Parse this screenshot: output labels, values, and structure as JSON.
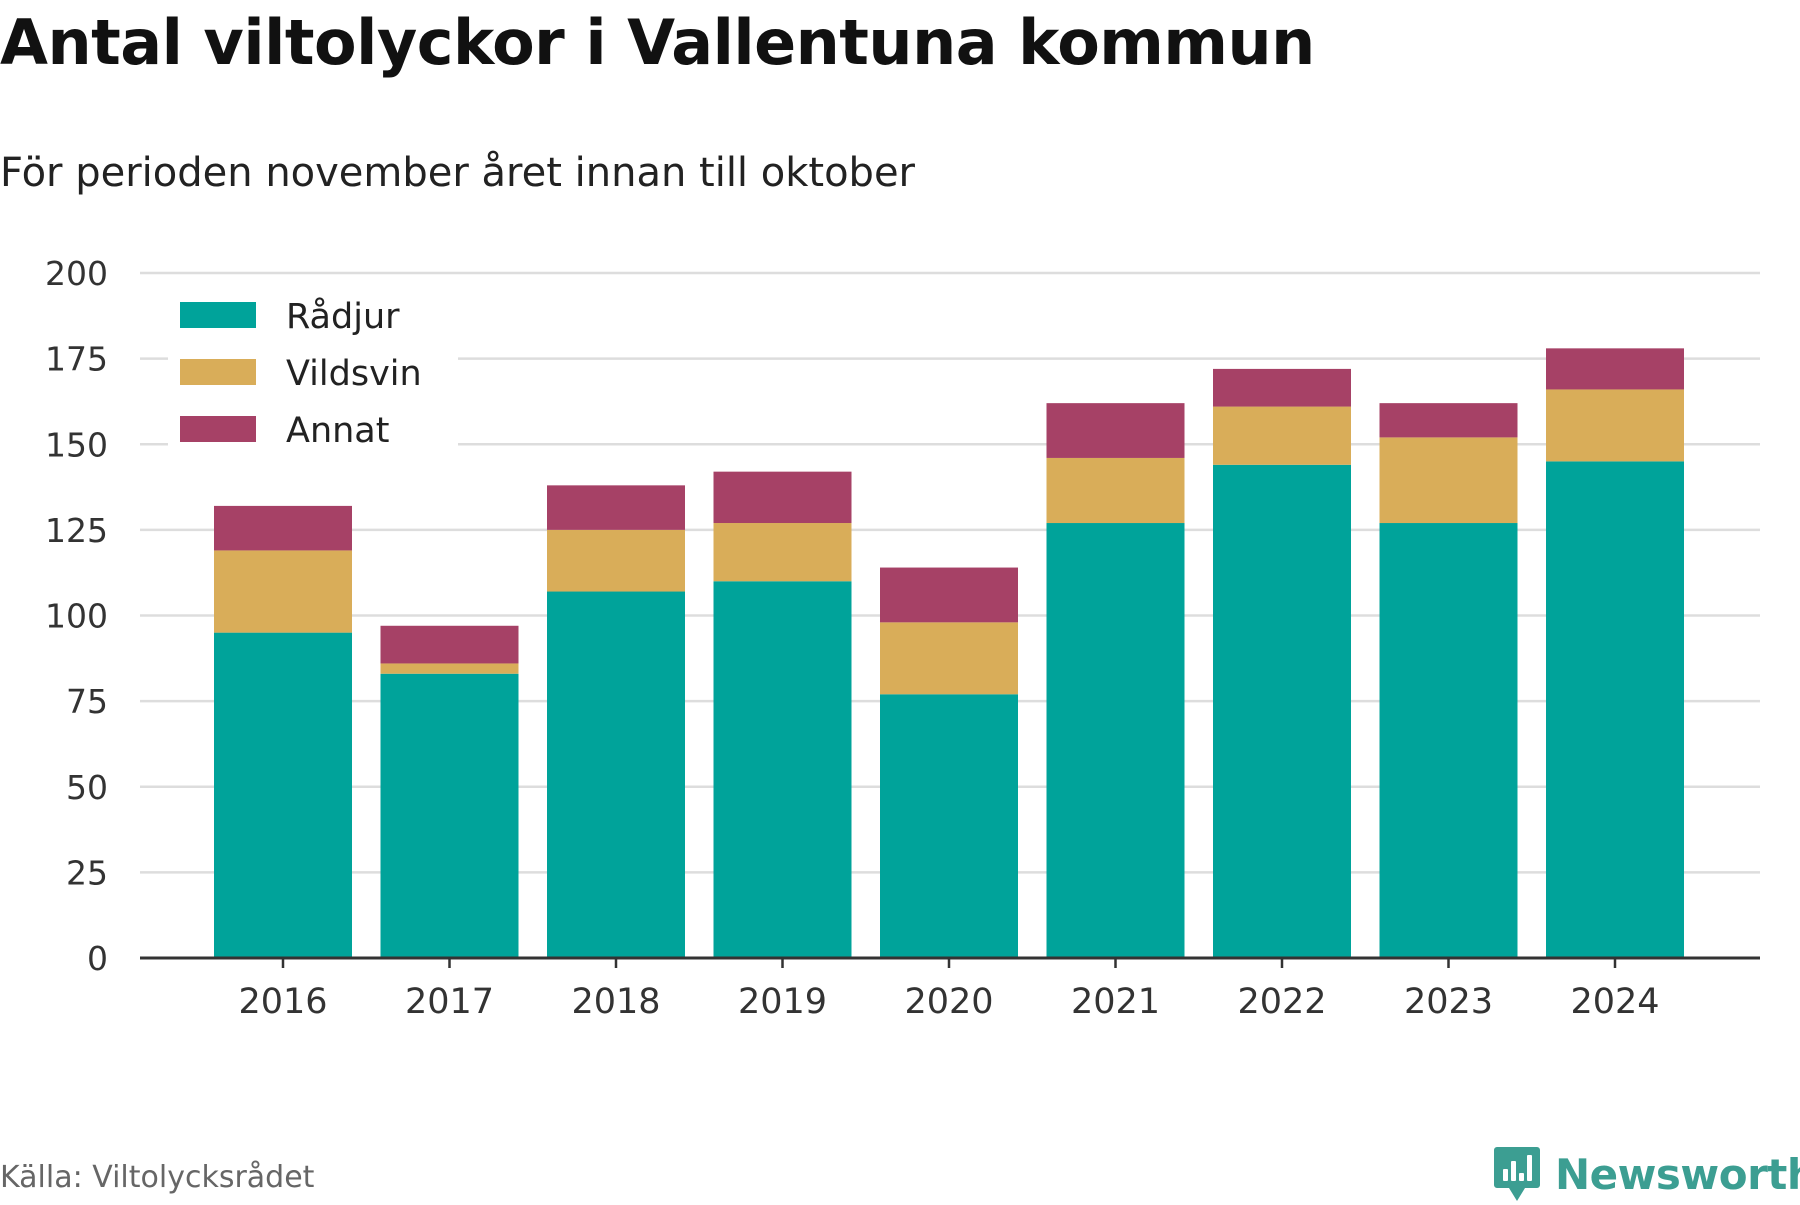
{
  "header": {
    "title": "Antal viltolyckor i Vallentuna kommun",
    "subtitle": "För perioden november året innan till oktober"
  },
  "footer": {
    "source": "Källa: Viltolycksrådet",
    "brand": "Newsworthy"
  },
  "colors": {
    "radjur": "#00a39a",
    "vildsvin": "#d9ad59",
    "annat": "#a64166",
    "grid": "#dddddd",
    "axis": "#333333",
    "brand": "#3c9e92"
  },
  "chart_data": {
    "type": "bar",
    "stacked": true,
    "categories": [
      "2016",
      "2017",
      "2018",
      "2019",
      "2020",
      "2021",
      "2022",
      "2023",
      "2024"
    ],
    "series": [
      {
        "name": "Rådjur",
        "color": "#00a39a",
        "values": [
          95,
          83,
          107,
          110,
          77,
          127,
          144,
          127,
          145
        ]
      },
      {
        "name": "Vildsvin",
        "color": "#d9ad59",
        "values": [
          24,
          3,
          18,
          17,
          21,
          19,
          17,
          25,
          21
        ]
      },
      {
        "name": "Annat",
        "color": "#a64166",
        "values": [
          13,
          11,
          13,
          15,
          16,
          16,
          11,
          10,
          12
        ]
      }
    ],
    "ylim": [
      0,
      200
    ],
    "yticks": [
      "0",
      "25",
      "50",
      "75",
      "100",
      "125",
      "150",
      "175",
      "200"
    ],
    "grid": true,
    "legend": "top-left"
  }
}
